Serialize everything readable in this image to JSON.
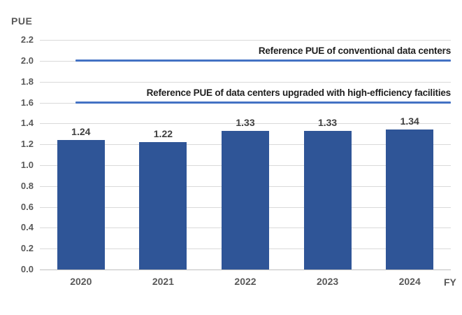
{
  "chart": {
    "colors": {
      "bar": "#2F5597",
      "reference_line": "#4472C4",
      "gridline": "#D9D9D9",
      "baseline": "#BFBFBF",
      "tick_label": "#595959",
      "bar_label": "#404040",
      "annotation": "#1f1f1f"
    }
  },
  "chart_data": {
    "type": "bar",
    "title": "",
    "ylabel": "PUE",
    "xlabel": "FY",
    "categories": [
      "2020",
      "2021",
      "2022",
      "2023",
      "2024"
    ],
    "values": [
      1.24,
      1.22,
      1.33,
      1.33,
      1.34
    ],
    "bar_labels": [
      "1.24",
      "1.22",
      "1.33",
      "1.33",
      "1.34"
    ],
    "ylim": [
      0.0,
      2.2
    ],
    "ytick_step": 0.2,
    "ytick_labels": [
      "2.2",
      "2.0",
      "1.8",
      "1.6",
      "1.4",
      "1.2",
      "1.0",
      "0.8",
      "0.6",
      "0.4",
      "0.2",
      "0.0"
    ],
    "grid": true,
    "legend": "none",
    "reference_lines": [
      {
        "value": 2.0,
        "label": "Reference PUE of conventional data centers",
        "color": "#4472C4"
      },
      {
        "value": 1.6,
        "label": "Reference PUE of data centers upgraded with high-efficiency facilities",
        "color": "#4472C4"
      }
    ]
  }
}
